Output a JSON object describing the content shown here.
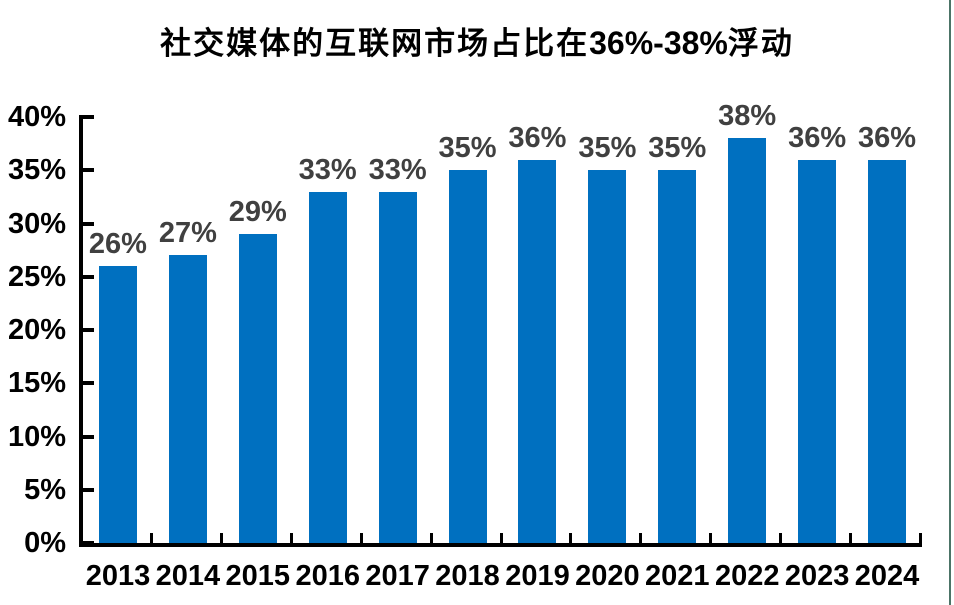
{
  "page": {
    "background": "#ffffff",
    "right_border_color": "#2d5c4c"
  },
  "title": {
    "prefix": "社交媒体的互联网市场占比在",
    "range": "36%-38%",
    "suffix": "浮动"
  },
  "chart_data": {
    "type": "bar",
    "title": "社交媒体的互联网市场占比在36%-38%浮动",
    "categories": [
      "2013",
      "2014",
      "2015",
      "2016",
      "2017",
      "2018",
      "2019",
      "2020",
      "2021",
      "2022",
      "2023",
      "2024"
    ],
    "values": [
      26,
      27,
      29,
      33,
      33,
      35,
      36,
      35,
      35,
      38,
      36,
      36
    ],
    "value_labels": [
      "26%",
      "27%",
      "29%",
      "33%",
      "33%",
      "35%",
      "36%",
      "35%",
      "35%",
      "38%",
      "36%",
      "36%"
    ],
    "y_tick_labels": [
      "0%",
      "5%",
      "10%",
      "15%",
      "20%",
      "25%",
      "30%",
      "35%",
      "40%"
    ],
    "ylim": [
      0,
      40
    ],
    "y_tick_step": 5,
    "xlabel": "",
    "ylabel": "",
    "grid": false,
    "legend": false,
    "bar_color": "#0070C0",
    "value_label_color": "#404040",
    "axis_color": "#000000"
  }
}
